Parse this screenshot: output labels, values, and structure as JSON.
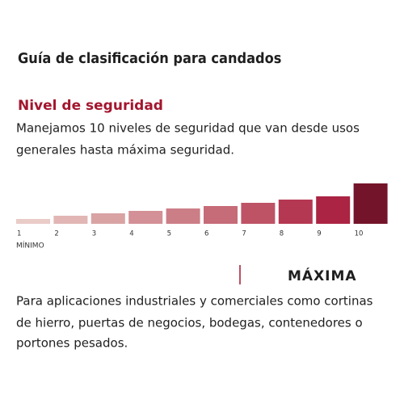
{
  "header": {
    "title": "Guía de clasificación para candados"
  },
  "section": {
    "title": "Nivel de seguridad",
    "description": [
      "Manejamos 10 niveles de seguridad que van desde usos",
      "generales hasta máxima seguridad."
    ]
  },
  "levels": {
    "labels": [
      "1",
      "2",
      "3",
      "4",
      "5",
      "6",
      "7",
      "8",
      "9",
      "10"
    ],
    "colors": [
      "#e9cbc7",
      "#e1b6b4",
      "#d9a3a4",
      "#d39096",
      "#cc7e87",
      "#c66b78",
      "#be5366",
      "#b53852",
      "#ab2443",
      "#74142a"
    ],
    "min_label": "MÍNIMO"
  },
  "selected": {
    "label": "MÁXIMA",
    "description": [
      "Para aplicaciones industriales y comerciales como cortinas",
      "de hierro, puertas de negocios, bodegas, contenedores o",
      "portones pesados."
    ]
  }
}
